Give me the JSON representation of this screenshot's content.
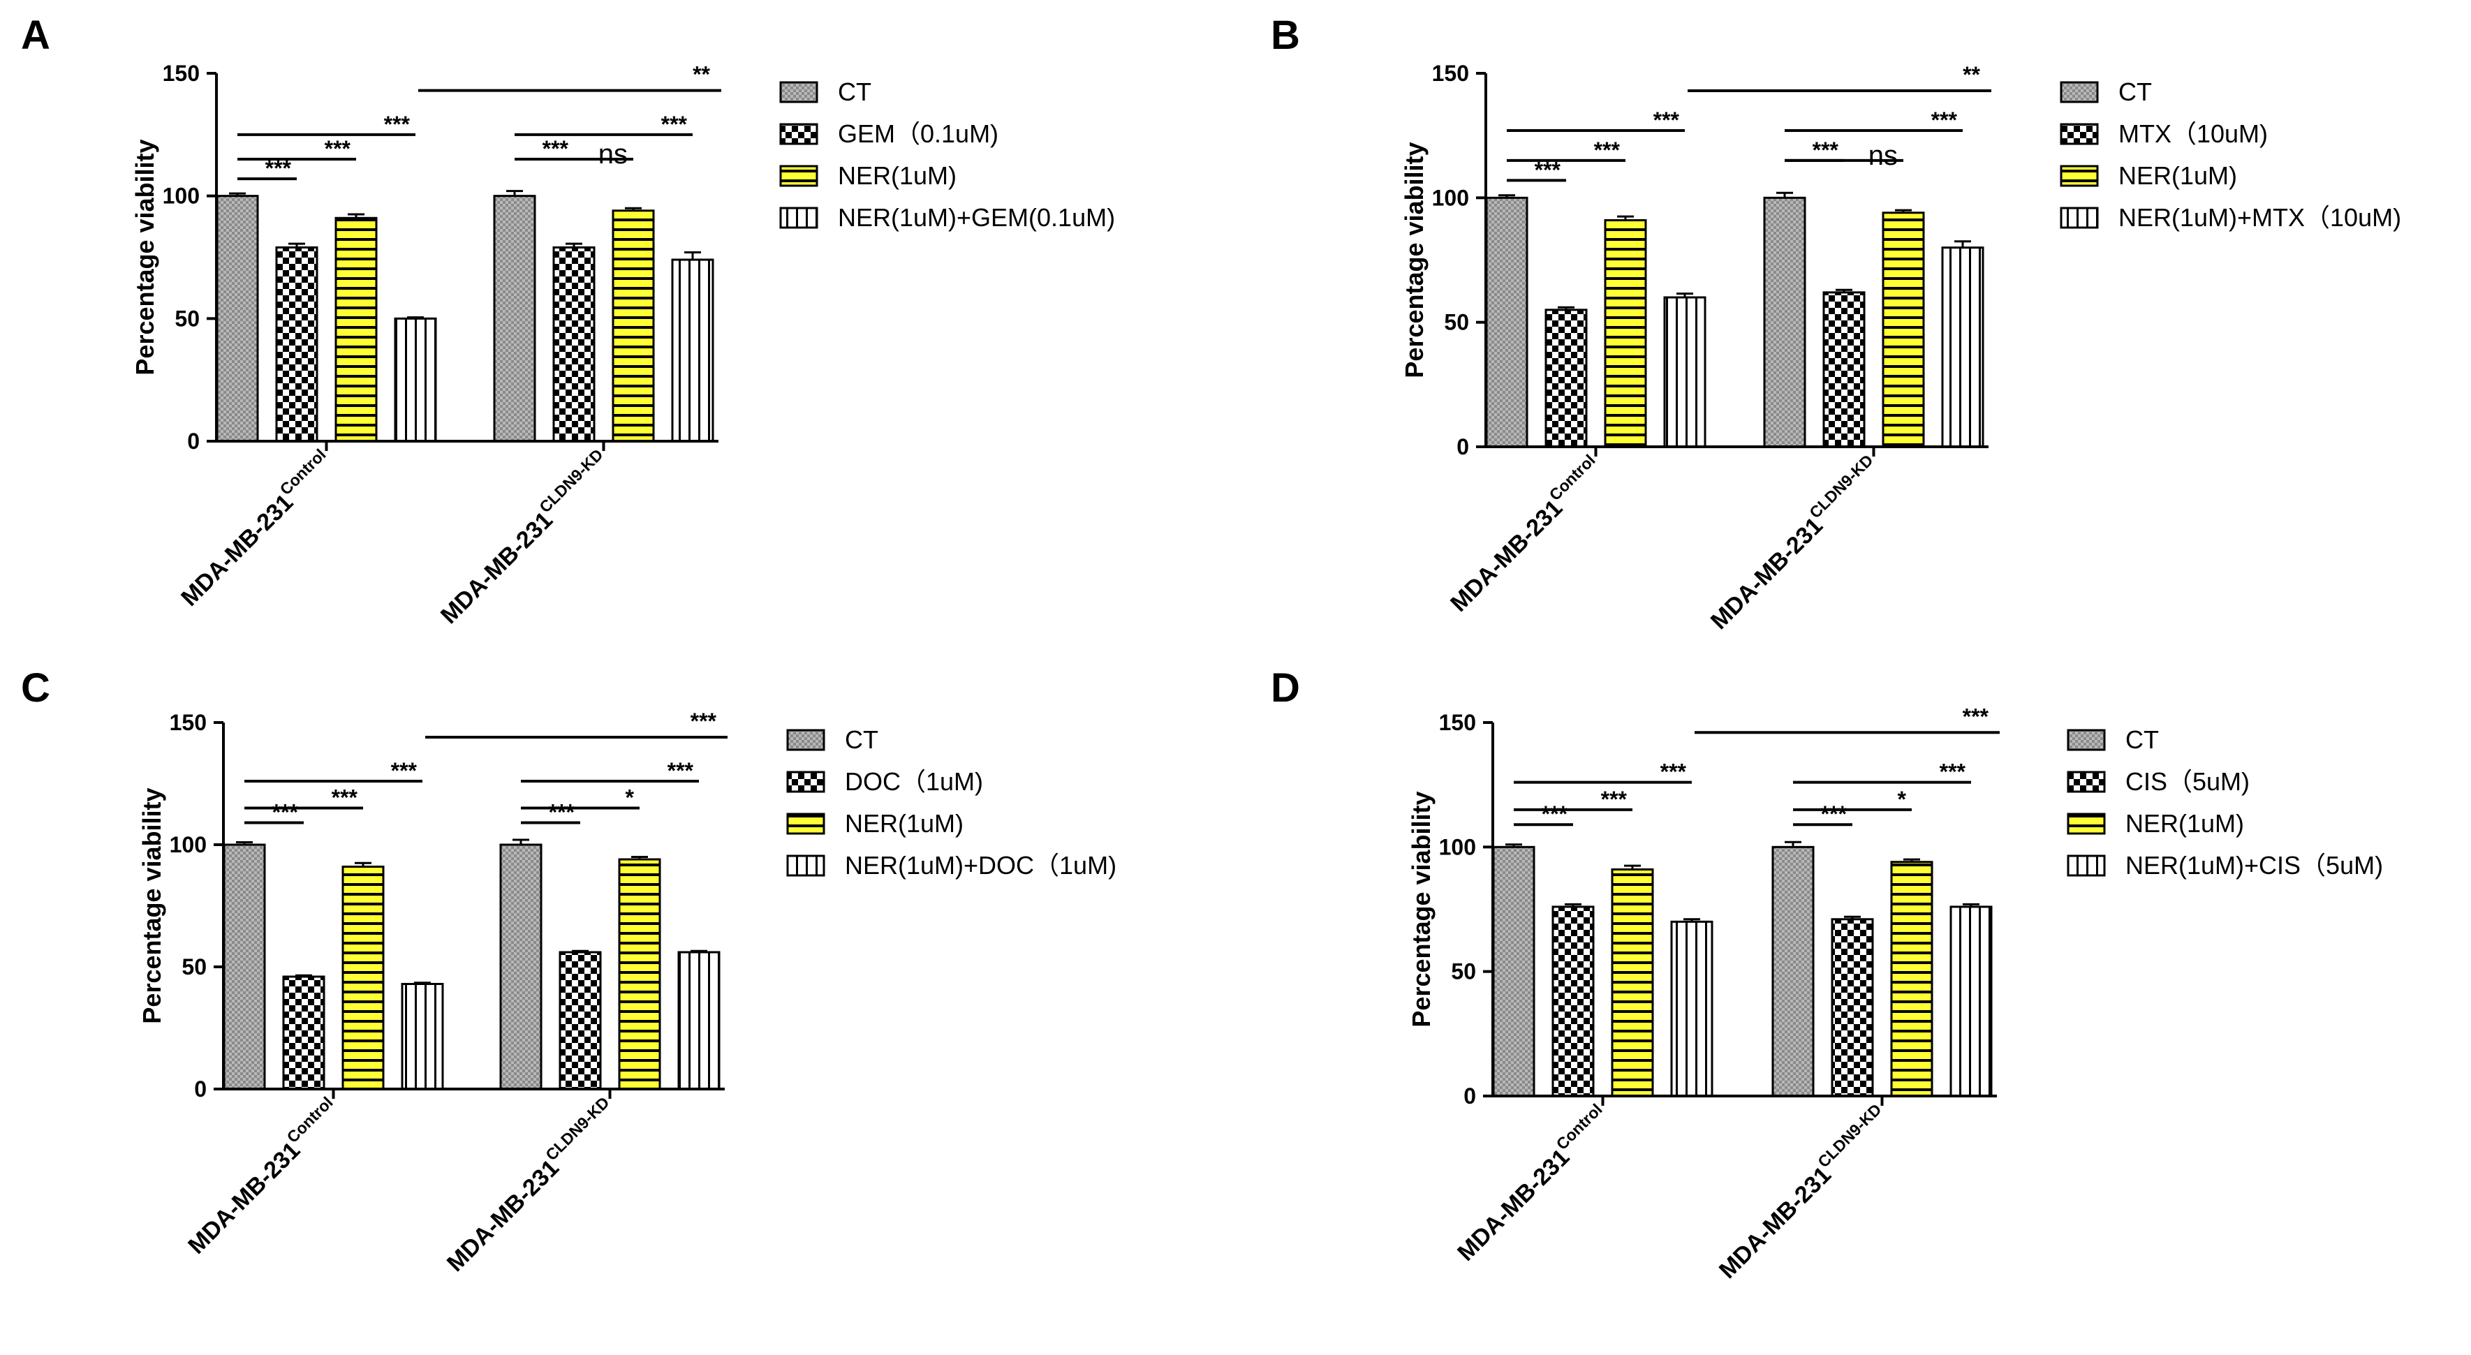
{
  "figure": {
    "colors": {
      "yellow": "#ffff33",
      "black": "#000000",
      "white": "#ffffff",
      "ct_gray": "#b8b8b8"
    }
  },
  "chart_data": [
    {
      "panel": "A",
      "type": "bar",
      "ylabel": "Percentage viability",
      "ylim": [
        0,
        150
      ],
      "yticks": [
        0,
        50,
        100,
        150
      ],
      "groups": [
        {
          "base": "MDA-MB-231",
          "sup": "Control"
        },
        {
          "base": "MDA-MB-231",
          "sup": "CLDN9-KD"
        }
      ],
      "series": [
        {
          "name": "CT",
          "pattern": "ct",
          "values": [
            100,
            100
          ],
          "errors": [
            1,
            2
          ]
        },
        {
          "name": "GEM（0.1uM)",
          "pattern": "checker",
          "values": [
            79,
            79
          ],
          "errors": [
            1.5,
            1.5
          ]
        },
        {
          "name": "NER(1uM)",
          "pattern": "yellow",
          "values": [
            91,
            94
          ],
          "errors": [
            1.5,
            1
          ]
        },
        {
          "name": "NER(1uM)+GEM(0.1uM)",
          "pattern": "vstripe",
          "values": [
            50,
            74
          ],
          "errors": [
            0.5,
            3
          ]
        }
      ],
      "annotations": [
        {
          "label": "***",
          "group": 0,
          "from": 0,
          "to": 1,
          "y": 107
        },
        {
          "label": "***",
          "group": 0,
          "from": 0,
          "to": 2,
          "y": 115
        },
        {
          "label": "***",
          "group": 0,
          "from": 0,
          "to": 3,
          "y": 125
        },
        {
          "label": "***",
          "group": 1,
          "from": 0,
          "to": 1,
          "y": 115
        },
        {
          "label": "ns",
          "group": 1,
          "from": 0,
          "to": 2,
          "y": 115
        },
        {
          "label": "***",
          "group": 1,
          "from": 0,
          "to": 3,
          "y": 125
        },
        {
          "label": "**",
          "cross": true,
          "y": 143
        }
      ]
    },
    {
      "panel": "B",
      "type": "bar",
      "ylabel": "Percentage viability",
      "ylim": [
        0,
        150
      ],
      "yticks": [
        0,
        50,
        100,
        150
      ],
      "groups": [
        {
          "base": "MDA-MB-231",
          "sup": "Control"
        },
        {
          "base": "MDA-MB-231",
          "sup": "CLDN9-KD"
        }
      ],
      "series": [
        {
          "name": "CT",
          "pattern": "ct",
          "values": [
            100,
            100
          ],
          "errors": [
            1,
            2
          ]
        },
        {
          "name": "MTX（10uM)",
          "pattern": "checker",
          "values": [
            55,
            62
          ],
          "errors": [
            1,
            1
          ]
        },
        {
          "name": "NER(1uM)",
          "pattern": "yellow",
          "values": [
            91,
            94
          ],
          "errors": [
            1.5,
            1
          ]
        },
        {
          "name": "NER(1uM)+MTX（10uM)",
          "pattern": "vstripe",
          "values": [
            60,
            80
          ],
          "errors": [
            1.5,
            2.5
          ]
        }
      ],
      "annotations": [
        {
          "label": "***",
          "group": 0,
          "from": 0,
          "to": 1,
          "y": 107
        },
        {
          "label": "***",
          "group": 0,
          "from": 0,
          "to": 2,
          "y": 115
        },
        {
          "label": "***",
          "group": 0,
          "from": 0,
          "to": 3,
          "y": 127
        },
        {
          "label": "***",
          "group": 1,
          "from": 0,
          "to": 1,
          "y": 115
        },
        {
          "label": "ns",
          "group": 1,
          "from": 0,
          "to": 2,
          "y": 115
        },
        {
          "label": "***",
          "group": 1,
          "from": 0,
          "to": 3,
          "y": 127
        },
        {
          "label": "**",
          "cross": true,
          "y": 143
        }
      ]
    },
    {
      "panel": "C",
      "type": "bar",
      "ylabel": "Percentage viability",
      "ylim": [
        0,
        150
      ],
      "yticks": [
        0,
        50,
        100,
        150
      ],
      "groups": [
        {
          "base": "MDA-MB-231",
          "sup": "Control"
        },
        {
          "base": "MDA-MB-231",
          "sup": "CLDN9-KD"
        }
      ],
      "series": [
        {
          "name": "CT",
          "pattern": "ct",
          "values": [
            100,
            100
          ],
          "errors": [
            1,
            2
          ]
        },
        {
          "name": "DOC（1uM)",
          "pattern": "checker",
          "values": [
            46,
            56
          ],
          "errors": [
            0.5,
            0.5
          ]
        },
        {
          "name": "NER(1uM)",
          "pattern": "yellow",
          "values": [
            91,
            94
          ],
          "errors": [
            1.5,
            1
          ]
        },
        {
          "name": "NER(1uM)+DOC（1uM)",
          "pattern": "vstripe",
          "values": [
            43,
            56
          ],
          "errors": [
            0.5,
            0.5
          ]
        }
      ],
      "annotations": [
        {
          "label": "***",
          "group": 0,
          "from": 0,
          "to": 1,
          "y": 109
        },
        {
          "label": "***",
          "group": 0,
          "from": 0,
          "to": 2,
          "y": 115
        },
        {
          "label": "***",
          "group": 0,
          "from": 0,
          "to": 3,
          "y": 126
        },
        {
          "label": "***",
          "group": 1,
          "from": 0,
          "to": 1,
          "y": 109
        },
        {
          "label": "*",
          "group": 1,
          "from": 0,
          "to": 2,
          "y": 115
        },
        {
          "label": "***",
          "group": 1,
          "from": 0,
          "to": 3,
          "y": 126
        },
        {
          "label": "***",
          "cross": true,
          "y": 144
        }
      ]
    },
    {
      "panel": "D",
      "type": "bar",
      "ylabel": "Percentage viability",
      "ylim": [
        0,
        150
      ],
      "yticks": [
        0,
        50,
        100,
        150
      ],
      "groups": [
        {
          "base": "MDA-MB-231",
          "sup": "Control"
        },
        {
          "base": "MDA-MB-231",
          "sup": "CLDN9-KD"
        }
      ],
      "series": [
        {
          "name": "CT",
          "pattern": "ct",
          "values": [
            100,
            100
          ],
          "errors": [
            1,
            2
          ]
        },
        {
          "name": "CIS（5uM)",
          "pattern": "checker",
          "values": [
            76,
            71
          ],
          "errors": [
            1,
            1
          ]
        },
        {
          "name": "NER(1uM)",
          "pattern": "yellow",
          "values": [
            91,
            94
          ],
          "errors": [
            1.5,
            1
          ]
        },
        {
          "name": "NER(1uM)+CIS（5uM)",
          "pattern": "vstripe",
          "values": [
            70,
            76
          ],
          "errors": [
            1,
            1
          ]
        }
      ],
      "annotations": [
        {
          "label": "***",
          "group": 0,
          "from": 0,
          "to": 1,
          "y": 109
        },
        {
          "label": "***",
          "group": 0,
          "from": 0,
          "to": 2,
          "y": 115
        },
        {
          "label": "***",
          "group": 0,
          "from": 0,
          "to": 3,
          "y": 126
        },
        {
          "label": "***",
          "group": 1,
          "from": 0,
          "to": 1,
          "y": 109
        },
        {
          "label": "*",
          "group": 1,
          "from": 0,
          "to": 2,
          "y": 115
        },
        {
          "label": "***",
          "group": 1,
          "from": 0,
          "to": 3,
          "y": 126
        },
        {
          "label": "***",
          "cross": true,
          "y": 146
        }
      ]
    }
  ]
}
